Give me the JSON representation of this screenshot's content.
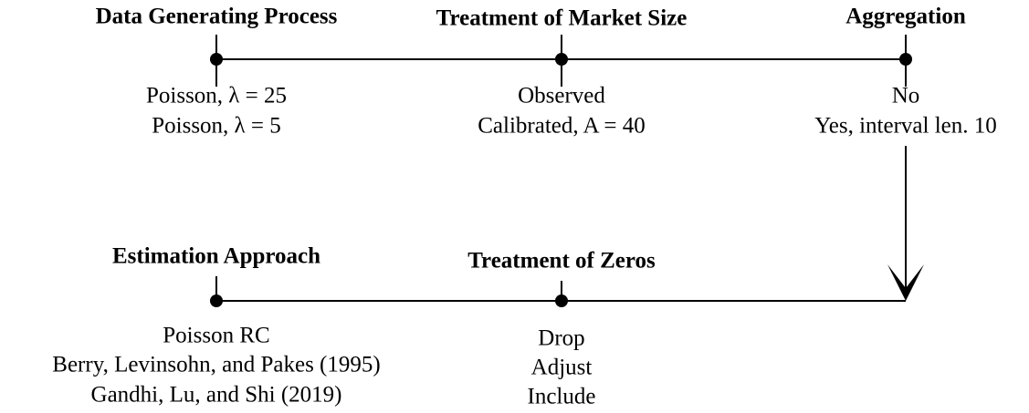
{
  "stages": [
    {
      "title": "Data Generating Process",
      "options": [
        "Poisson, λ = 25",
        "Poisson, λ = 5"
      ]
    },
    {
      "title": "Treatment of Market Size",
      "options": [
        "Observed",
        "Calibrated, A = 40"
      ]
    },
    {
      "title": "Aggregation",
      "options": [
        "No",
        "Yes, interval len. 10"
      ]
    },
    {
      "title": "Estimation Approach",
      "options": [
        "Poisson RC",
        "Berry, Levinsohn, and Pakes (1995)",
        "Gandhi, Lu, and Shi (2019)"
      ]
    },
    {
      "title": "Treatment of Zeros",
      "options": [
        "Drop",
        "Adjust",
        "Include"
      ]
    }
  ]
}
